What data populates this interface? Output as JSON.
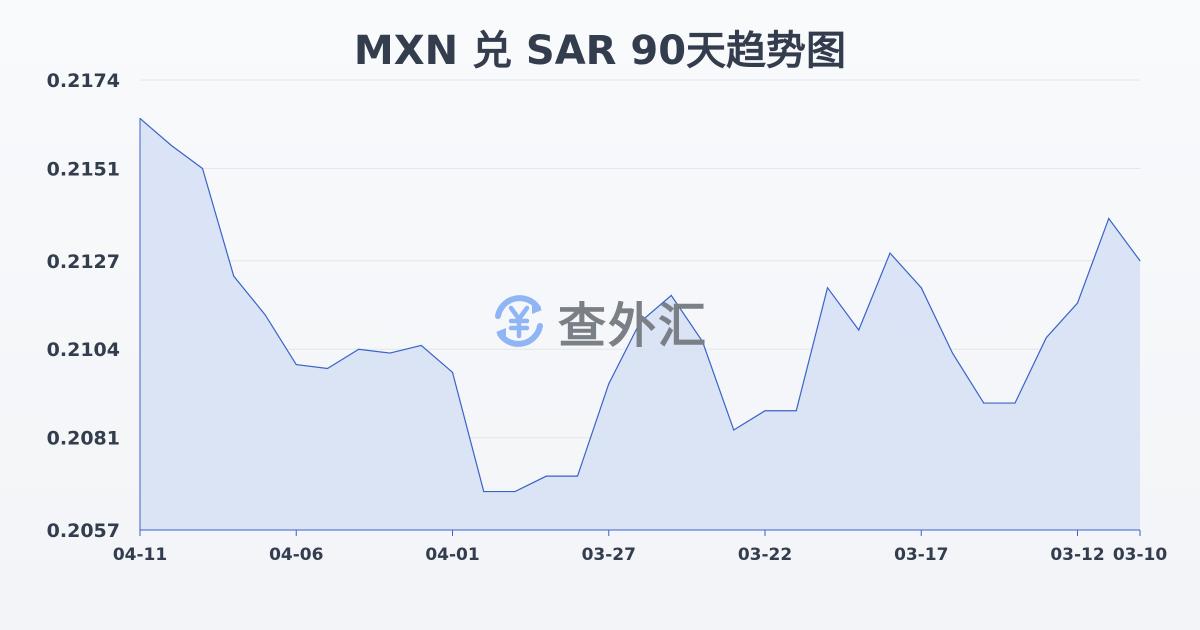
{
  "chart_data": {
    "type": "area",
    "title": "MXN 兑 SAR 90天趋势图",
    "xlabel": "",
    "ylabel": "",
    "x": [
      "04-11",
      "04-10",
      "04-09",
      "04-08",
      "04-07",
      "04-06",
      "04-05",
      "04-04",
      "04-03",
      "04-02",
      "04-01",
      "03-31",
      "03-30",
      "03-29",
      "03-28",
      "03-27",
      "03-26",
      "03-25",
      "03-24",
      "03-23",
      "03-22",
      "03-21",
      "03-20",
      "03-19",
      "03-18",
      "03-17",
      "03-16",
      "03-15",
      "03-14",
      "03-13",
      "03-12",
      "03-11",
      "03-10"
    ],
    "values": [
      0.2164,
      0.2157,
      0.2151,
      0.2123,
      0.2113,
      0.21,
      0.2099,
      0.2104,
      0.2103,
      0.2105,
      0.2098,
      0.2067,
      0.2067,
      0.2071,
      0.2071,
      0.2095,
      0.2111,
      0.2118,
      0.2106,
      0.2083,
      0.2088,
      0.2088,
      0.212,
      0.2109,
      0.2129,
      0.212,
      0.2103,
      0.209,
      0.209,
      0.2107,
      0.2116,
      0.2138,
      0.2127
    ],
    "xticks": [
      "04-11",
      "04-06",
      "04-01",
      "03-27",
      "03-22",
      "03-17",
      "03-12",
      "03-10"
    ],
    "yticks": [
      "0.2057",
      "0.2081",
      "0.2104",
      "0.2127",
      "0.2151",
      "0.2174"
    ],
    "ylim": [
      0.2057,
      0.2174
    ],
    "grid": true,
    "colors": {
      "line": "#3a63c8",
      "fill": "#d5e0f5",
      "grid": "#e3e6eb"
    }
  },
  "watermark": {
    "text": "查外汇",
    "icon": "yen-exchange-icon",
    "icon_color": "#8fb5f5"
  }
}
